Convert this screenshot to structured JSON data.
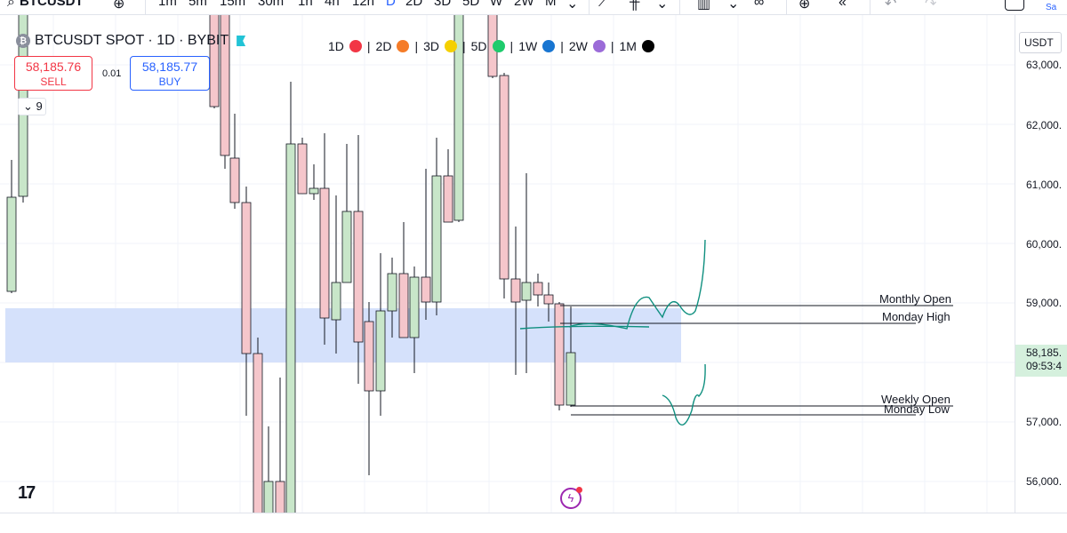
{
  "toolbar": {
    "symbol": "BTCUSDT",
    "add_icon": "plus-circle-icon",
    "timeframes": [
      "1m",
      "5m",
      "15m",
      "30m",
      "1h",
      "4h",
      "12h",
      "D",
      "2D",
      "3D",
      "5D",
      "W",
      "2W",
      "M"
    ],
    "active_timeframe": "D",
    "icons": [
      "chevron-down-icon",
      "line-chart-icon",
      "candles-icon",
      "chevron-down-icon",
      "bar-chart-icon",
      "chevron-down-icon",
      "indicators-icon",
      "alert-plus-icon",
      "replay-icon",
      "undo-icon",
      "redo-icon",
      "layout-icon"
    ],
    "corner_tiny": "Sa"
  },
  "legend": {
    "coin_icon": "bitcoin-icon",
    "coin_glyph": "₿",
    "title": "BTCUSDT SPOT · 1D · BYBIT",
    "flag_icon": "flag-icon"
  },
  "trade": {
    "sell_price": "58,185.76",
    "sell_label": "SELL",
    "buy_price": "58,185.77",
    "buy_label": "BUY",
    "spread": "0.01",
    "collapse_label": "9",
    "collapse_icon": "chevron-down-icon"
  },
  "interval_legend": [
    {
      "label": "1D",
      "color": "#f23645"
    },
    {
      "label": "2D",
      "color": "#f57c28"
    },
    {
      "label": "3D",
      "color": "#f5d000"
    },
    {
      "label": "5D",
      "color": "#1ecb6c"
    },
    {
      "label": "1W",
      "color": "#1875d1"
    },
    {
      "label": "2W",
      "color": "#9b6bd8"
    },
    {
      "label": "1M",
      "color": "#000000"
    }
  ],
  "axis": {
    "currency": "USDT",
    "labels": [
      "63,000.",
      "62,000.",
      "61,000.",
      "60,000.",
      "59,000.",
      "58,000.",
      "57,000.",
      "56,000."
    ],
    "label_values": [
      63000,
      62000,
      61000,
      60000,
      59000,
      58000,
      57000,
      56000
    ],
    "last_price": "58,185.",
    "countdown": "09:53:4"
  },
  "levels": {
    "monthly_open": "Monthly Open",
    "monday_high": "Monday High",
    "weekly_open": "Weekly Open",
    "monday_low": "Monday Low"
  },
  "colors": {
    "up_fill": "#c8e6c9",
    "down_fill": "#f5c6cb",
    "zone": "#d5e1fb",
    "drawing": "#0f8f7f",
    "accent": "#2962ff"
  },
  "branding": {
    "logo_text": "17",
    "flash_icon": "lightning-icon"
  }
}
